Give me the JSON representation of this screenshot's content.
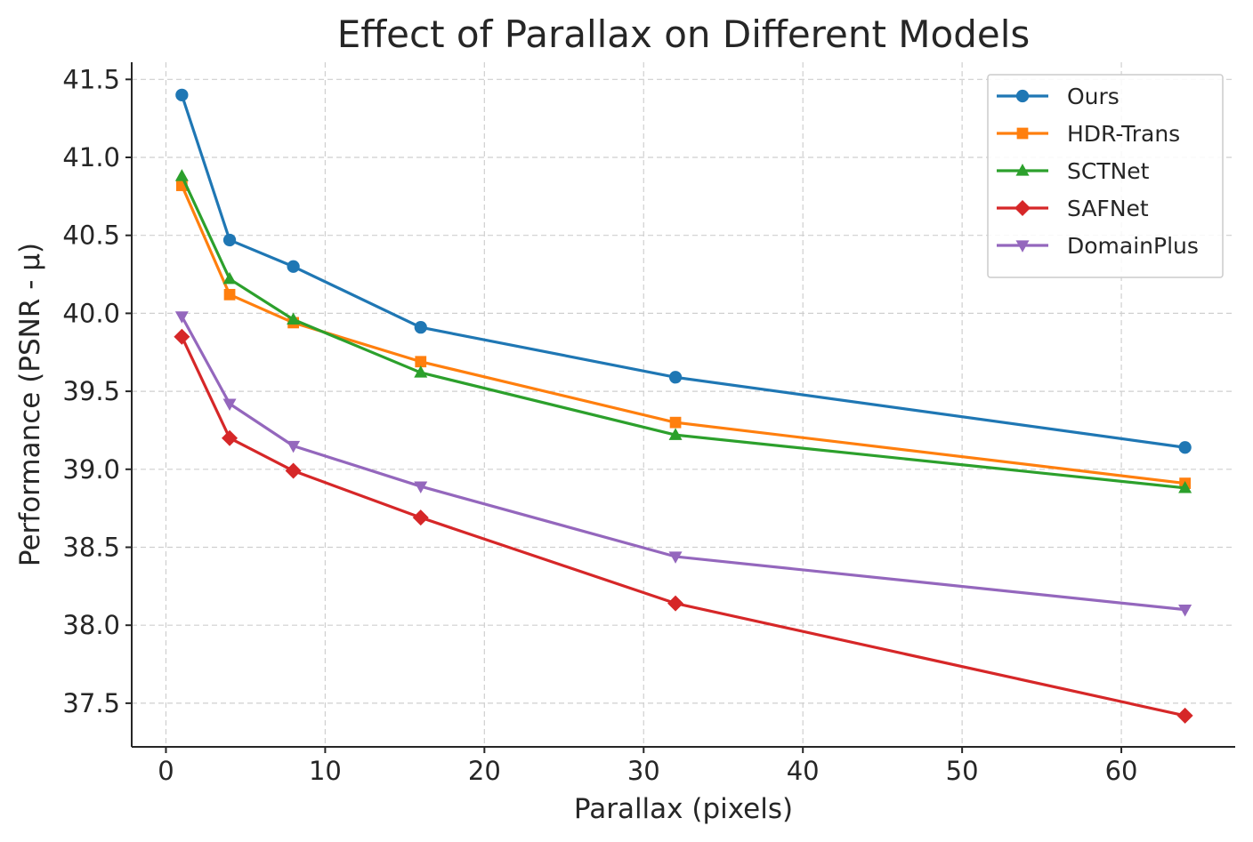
{
  "chart_data": {
    "type": "line",
    "title": "Effect of Parallax on Different Models",
    "xlabel": "Parallax (pixels)",
    "ylabel": "Performance (PSNR - μ)",
    "xlim": [
      -2.15,
      67.15
    ],
    "ylim": [
      37.22,
      41.61
    ],
    "xticks": [
      0,
      10,
      20,
      30,
      40,
      50,
      60
    ],
    "yticks": [
      37.5,
      38.0,
      38.5,
      39.0,
      39.5,
      40.0,
      40.5,
      41.0,
      41.5
    ],
    "ytick_labels": [
      "37.5",
      "38.0",
      "38.5",
      "39.0",
      "39.5",
      "40.0",
      "40.5",
      "41.0",
      "41.5"
    ],
    "grid": true,
    "legend_position": "top-right",
    "x": [
      1,
      4,
      8,
      16,
      32,
      64
    ],
    "series": [
      {
        "name": "Ours",
        "color": "#1f77b4",
        "marker": "circle",
        "values": [
          41.4,
          40.47,
          40.3,
          39.91,
          39.59,
          39.14
        ]
      },
      {
        "name": "HDR-Trans",
        "color": "#ff7f0e",
        "marker": "square",
        "values": [
          40.82,
          40.12,
          39.94,
          39.69,
          39.3,
          38.91
        ]
      },
      {
        "name": "SCTNet",
        "color": "#2ca02c",
        "marker": "triangle-up",
        "values": [
          40.88,
          40.22,
          39.96,
          39.62,
          39.22,
          38.88
        ]
      },
      {
        "name": "SAFNet",
        "color": "#d62728",
        "marker": "diamond",
        "values": [
          39.85,
          39.2,
          38.99,
          38.69,
          38.14,
          37.42
        ]
      },
      {
        "name": "DomainPlus",
        "color": "#9467bd",
        "marker": "triangle-down",
        "values": [
          39.98,
          39.42,
          39.15,
          38.89,
          38.44,
          38.1
        ]
      }
    ]
  }
}
